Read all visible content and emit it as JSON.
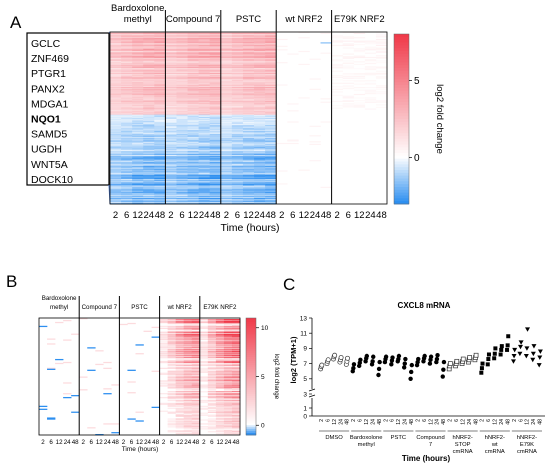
{
  "panels": {
    "a": "A",
    "b": "B",
    "c": "C"
  },
  "colors": {
    "up": "#f03a4a",
    "down": "#2d8ff0",
    "zero": "#ffffff"
  },
  "chart_data": [
    {
      "type": "heatmap",
      "panel": "A",
      "groups": [
        "Bardoxolone methyl",
        "Compound 7",
        "PSTC",
        "wt NRF2",
        "E79K NRF2"
      ],
      "columns_per_group": [
        "2",
        "6",
        "12",
        "24",
        "48"
      ],
      "xlabel": "Time (hours)",
      "colorbar": {
        "label": "log2 fold change",
        "ticks": [
          "5",
          "0"
        ],
        "range": [
          -3,
          8
        ]
      },
      "highlighted_genes": [
        "GCLC",
        "ZNF469",
        "PTGR1",
        "PANX2",
        "MDGA1",
        "NQO1",
        "SAMD5",
        "UGDH",
        "WNT5A",
        "DOCK10"
      ],
      "bold_gene": "NQO1"
    },
    {
      "type": "heatmap",
      "panel": "B",
      "groups": [
        "Bardoxolone methyl",
        "Compound 7",
        "PSTC",
        "wt NRF2",
        "E79K NRF2"
      ],
      "columns_per_group": [
        "2",
        "6",
        "12",
        "24",
        "48"
      ],
      "xlabel": "Time (hours)",
      "colorbar": {
        "label": "log2 fold change",
        "ticks": [
          "10",
          "5",
          "0"
        ],
        "range": [
          -1,
          11
        ]
      }
    },
    {
      "type": "scatter",
      "panel": "C",
      "title": "CXCL8 mRNA",
      "ylabel": "log2 (TPM+1)",
      "xlabel": "Time (hours)",
      "yticks": [
        "13",
        "11",
        "9",
        "7",
        "5",
        "3",
        "1",
        "0"
      ],
      "ylim": [
        0,
        13
      ],
      "groups": [
        {
          "name": "DMSO",
          "marker": "circle-open",
          "times": [
            "2",
            "6",
            "12",
            "24",
            "48"
          ],
          "values": [
            [
              6.3,
              6.6,
              6.8
            ],
            [
              7.0,
              7.3,
              7.5
            ],
            [
              7.6,
              7.9,
              8.1
            ],
            [
              7.2,
              7.5,
              7.8
            ],
            [
              6.9,
              7.3,
              7.7
            ]
          ]
        },
        {
          "name": "Bardoxolone methyl",
          "marker": "circle-filled",
          "times": [
            "2",
            "6",
            "12",
            "24",
            "48"
          ],
          "values": [
            [
              6.0,
              6.4,
              6.9
            ],
            [
              6.7,
              7.1,
              7.5
            ],
            [
              7.3,
              7.7,
              8.0
            ],
            [
              6.9,
              7.3,
              7.9
            ],
            [
              5.5,
              6.3,
              7.2
            ]
          ]
        },
        {
          "name": "PSTC",
          "marker": "circle-filled",
          "times": [
            "2",
            "6",
            "12",
            "24",
            "48"
          ],
          "values": [
            [
              7.2,
              7.6,
              7.9
            ],
            [
              6.9,
              7.4,
              7.8
            ],
            [
              7.3,
              7.6,
              8.0
            ],
            [
              6.5,
              7.0,
              7.6
            ],
            [
              5.0,
              5.9,
              6.8
            ]
          ]
        },
        {
          "name": "Compound 7",
          "marker": "circle-filled",
          "times": [
            "2",
            "6",
            "12",
            "24",
            "48"
          ],
          "values": [
            [
              6.8,
              7.2,
              7.6
            ],
            [
              7.3,
              7.7,
              8.0
            ],
            [
              7.0,
              7.5,
              7.9
            ],
            [
              7.2,
              7.6,
              8.1
            ],
            [
              5.3,
              6.2,
              7.2
            ]
          ]
        },
        {
          "name": "hNRF2-STOP cmRNA",
          "marker": "square-open",
          "times": [
            "2",
            "6",
            "12",
            "24",
            "48"
          ],
          "values": [
            [
              6.3,
              6.7,
              7.0
            ],
            [
              6.7,
              7.0,
              7.3
            ],
            [
              7.0,
              7.3,
              7.6
            ],
            [
              7.2,
              7.5,
              7.8
            ],
            [
              7.5,
              7.8,
              8.1
            ]
          ]
        },
        {
          "name": "hNRF2-wt cmRNA",
          "marker": "square-filled",
          "times": [
            "2",
            "6",
            "12",
            "24",
            "48"
          ],
          "values": [
            [
              5.8,
              6.4,
              7.0
            ],
            [
              6.9,
              7.6,
              8.2
            ],
            [
              7.7,
              8.3,
              9.0
            ],
            [
              8.2,
              8.8,
              9.3
            ],
            [
              8.8,
              9.4,
              10.6
            ]
          ]
        },
        {
          "name": "hNRF2-E79K cmRNA",
          "marker": "triangle-down",
          "times": [
            "2",
            "6",
            "12",
            "24",
            "48"
          ],
          "values": [
            [
              7.3,
              8.0,
              8.8
            ],
            [
              8.3,
              9.2,
              9.8
            ],
            [
              8.0,
              9.0,
              11.5
            ],
            [
              7.5,
              8.3,
              9.3
            ],
            [
              6.8,
              7.8,
              8.6
            ]
          ]
        }
      ]
    }
  ]
}
